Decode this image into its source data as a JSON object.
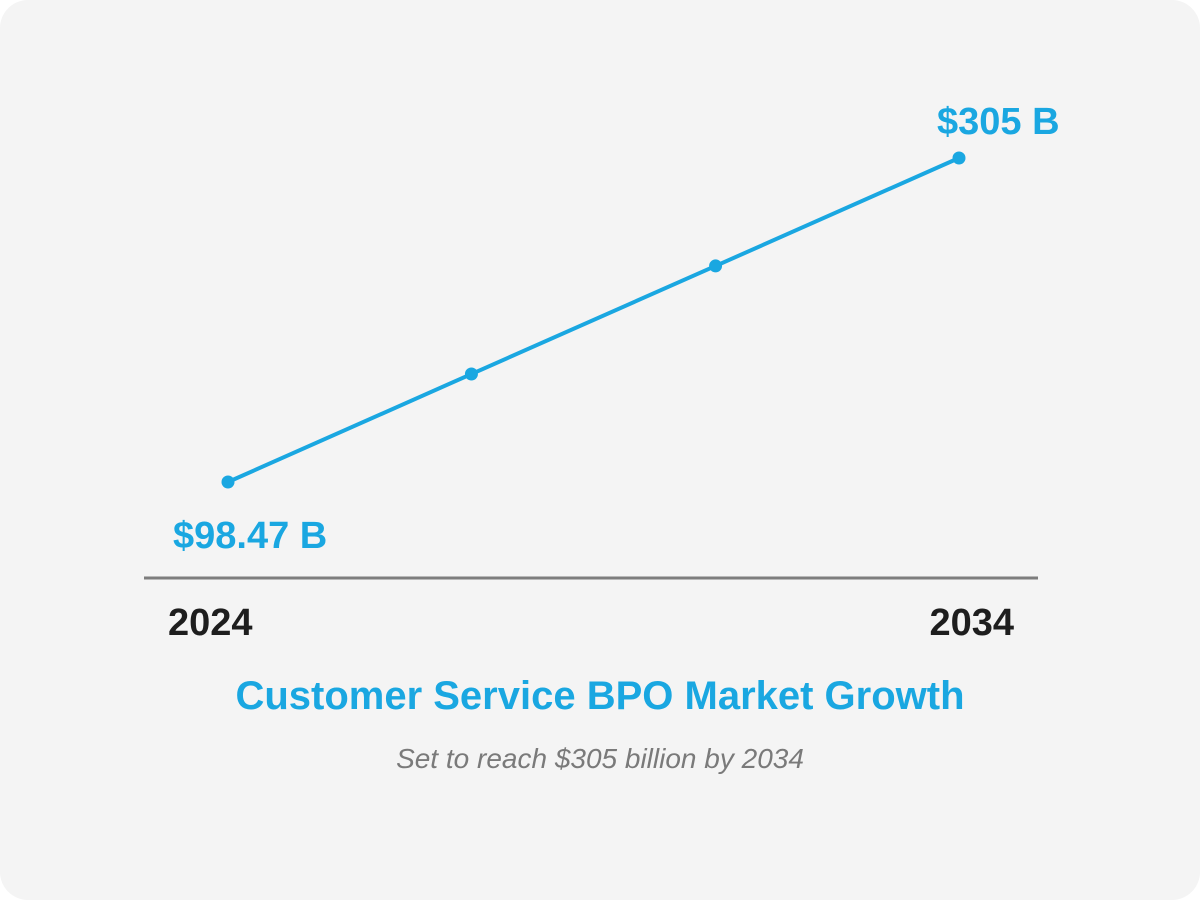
{
  "colors": {
    "background": "#f4f4f4",
    "accent": "#1aa7e1",
    "baseline": "#7d7d7d",
    "year_text": "#1e1e1e",
    "subtitle_text": "#7a7a7a"
  },
  "chart_data": {
    "type": "line",
    "title": "Customer Service BPO Market Growth",
    "subtitle": "Set to reach $305 billion by 2034",
    "xlabel": "",
    "ylabel": "",
    "x_ticks": [
      "2024",
      "2034"
    ],
    "series": [
      {
        "color": "#1aa7e1",
        "points": [
          {
            "x": 2024,
            "y": 98.47,
            "label": "$98.47 B"
          },
          {
            "x": 2027.33,
            "y": 167.3
          },
          {
            "x": 2030.67,
            "y": 236.2
          },
          {
            "x": 2034,
            "y": 305,
            "label": "$305 B"
          }
        ]
      }
    ],
    "x_range": [
      2024,
      2034
    ],
    "y_range": [
      98.47,
      305
    ],
    "grid": false,
    "legend": "none"
  }
}
